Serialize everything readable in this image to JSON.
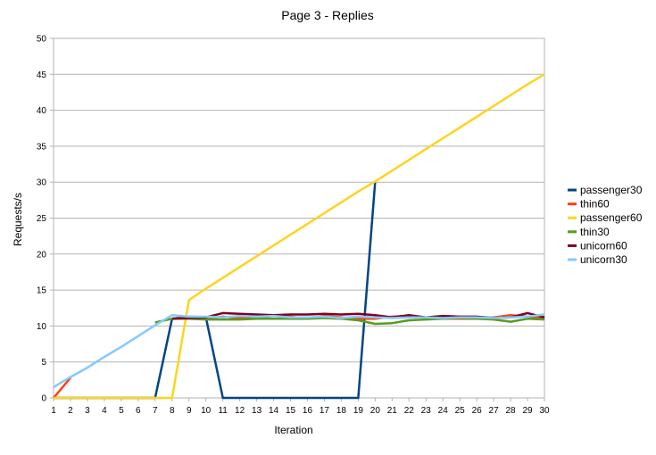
{
  "chart_data": {
    "type": "line",
    "title": "Page 3 - Replies",
    "xlabel": "Iteration",
    "ylabel": "Requests/s",
    "ylim": [
      0,
      50
    ],
    "yticks": [
      0,
      5,
      10,
      15,
      20,
      25,
      30,
      35,
      40,
      45,
      50
    ],
    "x": [
      1,
      2,
      3,
      4,
      5,
      6,
      7,
      8,
      9,
      10,
      11,
      12,
      13,
      14,
      15,
      16,
      17,
      18,
      19,
      20,
      21,
      22,
      23,
      24,
      25,
      26,
      27,
      28,
      29,
      30
    ],
    "grid": true,
    "legend_position": "right",
    "series": [
      {
        "name": "passenger30",
        "color": "#004586",
        "values": [
          0,
          0,
          0,
          0,
          0,
          0,
          0,
          11,
          11.3,
          11.2,
          0,
          0,
          0,
          0,
          0,
          0,
          0,
          0,
          0,
          30,
          null,
          null,
          null,
          null,
          null,
          null,
          null,
          null,
          null,
          null
        ]
      },
      {
        "name": "thin60",
        "color": "#ff420e",
        "values": [
          0,
          2.8,
          null,
          null,
          null,
          null,
          null,
          11,
          11.2,
          11,
          11.3,
          11.1,
          11.2,
          11.4,
          11.3,
          11,
          11.4,
          11.2,
          11,
          11,
          11.3,
          11.4,
          11.2,
          11,
          11,
          11,
          11.2,
          11.5,
          11.3,
          11
        ]
      },
      {
        "name": "passenger60",
        "color": "#ffd320",
        "values": [
          0,
          0,
          0,
          0,
          0,
          0,
          0,
          0,
          13.6,
          15.2,
          16.7,
          18.2,
          19.7,
          21.2,
          22.7,
          24.2,
          25.7,
          27.2,
          28.7,
          30.1,
          31.6,
          33.1,
          34.6,
          36.1,
          37.6,
          39.1,
          40.6,
          42.1,
          43.6,
          45
        ]
      },
      {
        "name": "thin30",
        "color": "#579d1c",
        "values": [
          null,
          null,
          null,
          null,
          null,
          null,
          10.5,
          11,
          11,
          10.9,
          10.9,
          10.9,
          11,
          11,
          11,
          11,
          11.1,
          11,
          10.8,
          10.3,
          10.4,
          10.8,
          10.9,
          11,
          11.1,
          11,
          10.9,
          10.6,
          11,
          10.9
        ]
      },
      {
        "name": "unicorn60",
        "color": "#7e0021",
        "values": [
          null,
          null,
          null,
          null,
          null,
          null,
          null,
          11,
          11.1,
          11.2,
          11.8,
          11.7,
          11.6,
          11.5,
          11.6,
          11.6,
          11.7,
          11.6,
          11.7,
          11.5,
          11.2,
          11.5,
          11.2,
          11.4,
          11.3,
          11.3,
          11.1,
          11.2,
          11.8,
          11.2
        ]
      },
      {
        "name": "unicorn30",
        "color": "#83caff",
        "values": [
          1.5,
          2.9,
          4.2,
          5.7,
          7.1,
          8.6,
          10.1,
          11.5,
          11.3,
          11.3,
          11.2,
          11.4,
          11.3,
          11.4,
          11.2,
          11.2,
          11.3,
          11.1,
          11.3,
          11.2,
          11.1,
          11.2,
          11.2,
          11.1,
          11.2,
          11.2,
          11.1,
          11.2,
          11.3,
          11.6
        ]
      }
    ]
  }
}
